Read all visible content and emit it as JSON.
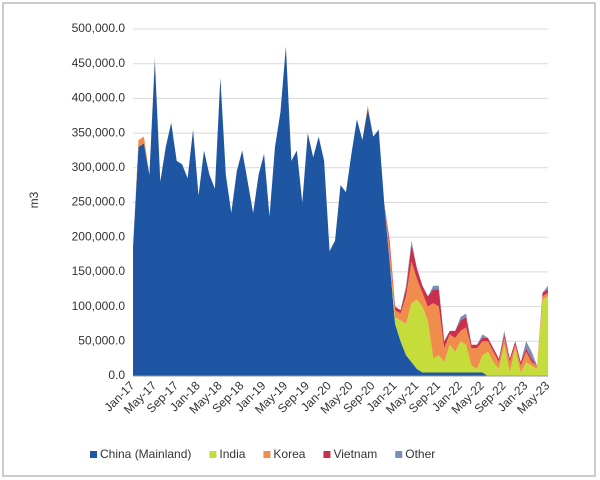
{
  "chart_data": {
    "type": "stacked_area",
    "y_label": "m3",
    "categories": [
      "Jan-17",
      null,
      null,
      null,
      "May-17",
      null,
      null,
      null,
      "Sep-17",
      null,
      null,
      null,
      "Jan-18",
      null,
      null,
      null,
      "May-18",
      null,
      null,
      null,
      "Sep-18",
      null,
      null,
      null,
      "Jan-19",
      null,
      null,
      null,
      "May-19",
      null,
      null,
      null,
      "Sep-19",
      null,
      null,
      null,
      "Jan-20",
      null,
      null,
      null,
      "May-20",
      null,
      null,
      null,
      "Sep-20",
      null,
      null,
      null,
      "Jan-21",
      null,
      null,
      null,
      "May-21",
      null,
      null,
      null,
      "Sep-21",
      null,
      null,
      null,
      "Jan-22",
      null,
      null,
      null,
      "May-22",
      null,
      null,
      null,
      "Sep-22",
      null,
      null,
      null,
      "Jan-23",
      null,
      null,
      null,
      "May-23"
    ],
    "series": [
      {
        "name": "China (Mainland)",
        "color": "#1f56a3",
        "values": [
          185000,
          330000,
          335000,
          290000,
          455000,
          280000,
          330000,
          365000,
          310000,
          305000,
          285000,
          355000,
          260000,
          325000,
          290000,
          270000,
          430000,
          290000,
          235000,
          295000,
          325000,
          280000,
          235000,
          290000,
          320000,
          230000,
          330000,
          380000,
          475000,
          310000,
          325000,
          250000,
          350000,
          315000,
          345000,
          310000,
          180000,
          195000,
          275000,
          265000,
          320000,
          370000,
          340000,
          385000,
          345000,
          355000,
          250000,
          165000,
          75000,
          50000,
          30000,
          20000,
          10000,
          5000,
          5000,
          5000,
          5000,
          5000,
          5000,
          5000,
          5000,
          5000,
          5000,
          5000,
          5000,
          0,
          0,
          0,
          0,
          0,
          0,
          0,
          0,
          0,
          0,
          0,
          0
        ]
      },
      {
        "name": "India",
        "color": "#c5dc3a",
        "values": [
          0,
          0,
          0,
          0,
          0,
          0,
          0,
          0,
          0,
          0,
          0,
          0,
          0,
          0,
          0,
          0,
          0,
          0,
          0,
          0,
          0,
          0,
          0,
          0,
          0,
          0,
          0,
          0,
          0,
          0,
          0,
          0,
          0,
          0,
          0,
          0,
          0,
          0,
          0,
          0,
          0,
          0,
          0,
          0,
          0,
          0,
          0,
          0,
          10000,
          30000,
          45000,
          85000,
          100000,
          95000,
          75000,
          20000,
          25000,
          15000,
          40000,
          30000,
          45000,
          40000,
          10000,
          5000,
          25000,
          35000,
          20000,
          10000,
          45000,
          5000,
          40000,
          5000,
          20000,
          15000,
          10000,
          110000,
          115000
        ]
      },
      {
        "name": "Korea",
        "color": "#f08c4c",
        "values": [
          0,
          10000,
          10000,
          0,
          5000,
          0,
          0,
          0,
          0,
          0,
          0,
          0,
          0,
          0,
          0,
          0,
          0,
          0,
          0,
          0,
          0,
          0,
          0,
          0,
          0,
          0,
          0,
          0,
          0,
          0,
          0,
          0,
          0,
          0,
          0,
          0,
          0,
          0,
          0,
          0,
          0,
          0,
          0,
          5000,
          0,
          0,
          0,
          20000,
          10000,
          10000,
          40000,
          60000,
          30000,
          20000,
          20000,
          80000,
          70000,
          20000,
          15000,
          20000,
          15000,
          25000,
          25000,
          30000,
          20000,
          15000,
          15000,
          10000,
          10000,
          15000,
          5000,
          10000,
          15000,
          5000,
          5000,
          5000,
          5000
        ]
      },
      {
        "name": "Vietnam",
        "color": "#c9304c",
        "values": [
          0,
          0,
          0,
          0,
          0,
          0,
          0,
          0,
          0,
          0,
          0,
          0,
          0,
          0,
          0,
          0,
          0,
          0,
          0,
          0,
          0,
          0,
          0,
          0,
          0,
          0,
          0,
          0,
          0,
          0,
          0,
          0,
          0,
          0,
          0,
          0,
          0,
          0,
          0,
          0,
          0,
          0,
          0,
          0,
          0,
          0,
          0,
          10000,
          5000,
          5000,
          10000,
          25000,
          15000,
          10000,
          15000,
          20000,
          25000,
          10000,
          5000,
          10000,
          15000,
          15000,
          5000,
          5000,
          5000,
          5000,
          5000,
          5000,
          5000,
          5000,
          5000,
          5000,
          5000,
          5000,
          0,
          5000,
          5000
        ]
      },
      {
        "name": "Other",
        "color": "#7a8fb8",
        "values": [
          0,
          0,
          0,
          0,
          0,
          0,
          0,
          0,
          0,
          0,
          0,
          0,
          0,
          0,
          0,
          0,
          0,
          0,
          0,
          0,
          0,
          0,
          0,
          0,
          0,
          0,
          0,
          0,
          0,
          0,
          0,
          0,
          0,
          0,
          0,
          0,
          0,
          0,
          0,
          0,
          0,
          0,
          0,
          0,
          0,
          0,
          0,
          0,
          0,
          0,
          5000,
          5000,
          0,
          0,
          0,
          5000,
          5000,
          0,
          0,
          0,
          5000,
          5000,
          0,
          0,
          5000,
          0,
          0,
          0,
          5000,
          0,
          0,
          0,
          10000,
          10000,
          0,
          0,
          5000
        ]
      }
    ],
    "ylim": [
      0,
      500000
    ],
    "yticks": [
      {
        "value": 0,
        "label": "0.0"
      },
      {
        "value": 50000,
        "label": "50,000.0"
      },
      {
        "value": 100000,
        "label": "100,000.0"
      },
      {
        "value": 150000,
        "label": "150,000.0"
      },
      {
        "value": 200000,
        "label": "200,000.0"
      },
      {
        "value": 250000,
        "label": "250,000.0"
      },
      {
        "value": 300000,
        "label": "300,000.0"
      },
      {
        "value": 350000,
        "label": "350,000.0"
      },
      {
        "value": 400000,
        "label": "400,000.0"
      },
      {
        "value": 450000,
        "label": "450,000.0"
      },
      {
        "value": 500000,
        "label": "500,000.0"
      }
    ],
    "grid": true,
    "legend": "bottom"
  }
}
